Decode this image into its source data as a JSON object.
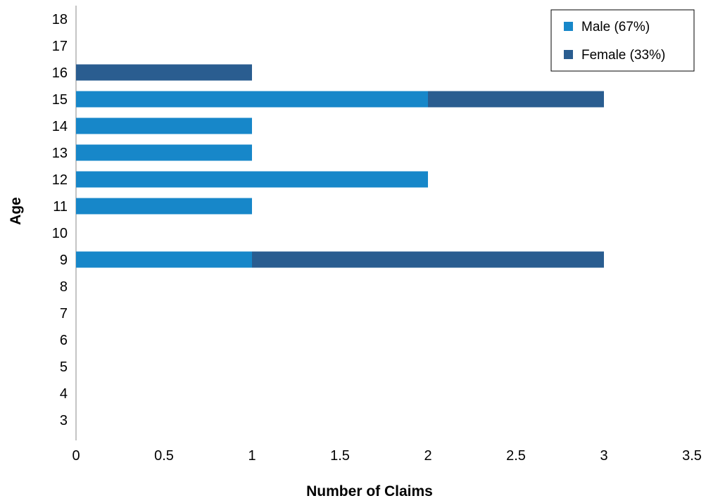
{
  "chart_data": {
    "type": "bar",
    "orientation": "horizontal",
    "stacked": true,
    "xlabel": "Number of Claims",
    "ylabel": "Age",
    "xlim": [
      0,
      3.5
    ],
    "xticks": [
      "0",
      "0.5",
      "1",
      "1.5",
      "2",
      "2.5",
      "3",
      "3.5"
    ],
    "categories": [
      "3",
      "4",
      "5",
      "6",
      "7",
      "8",
      "9",
      "10",
      "11",
      "12",
      "13",
      "14",
      "15",
      "16",
      "17",
      "18"
    ],
    "series": [
      {
        "name": "Male (67%)",
        "color": "#1787c9",
        "values": [
          0,
          0,
          0,
          0,
          0,
          0,
          1,
          0,
          1,
          2,
          1,
          1,
          2,
          0,
          0,
          0
        ]
      },
      {
        "name": "Female (33%)",
        "color": "#2a5d90",
        "values": [
          0,
          0,
          0,
          0,
          0,
          0,
          2,
          0,
          0,
          0,
          0,
          0,
          1,
          1,
          0,
          0
        ]
      }
    ],
    "grid": false,
    "legend_position": "top-right"
  }
}
